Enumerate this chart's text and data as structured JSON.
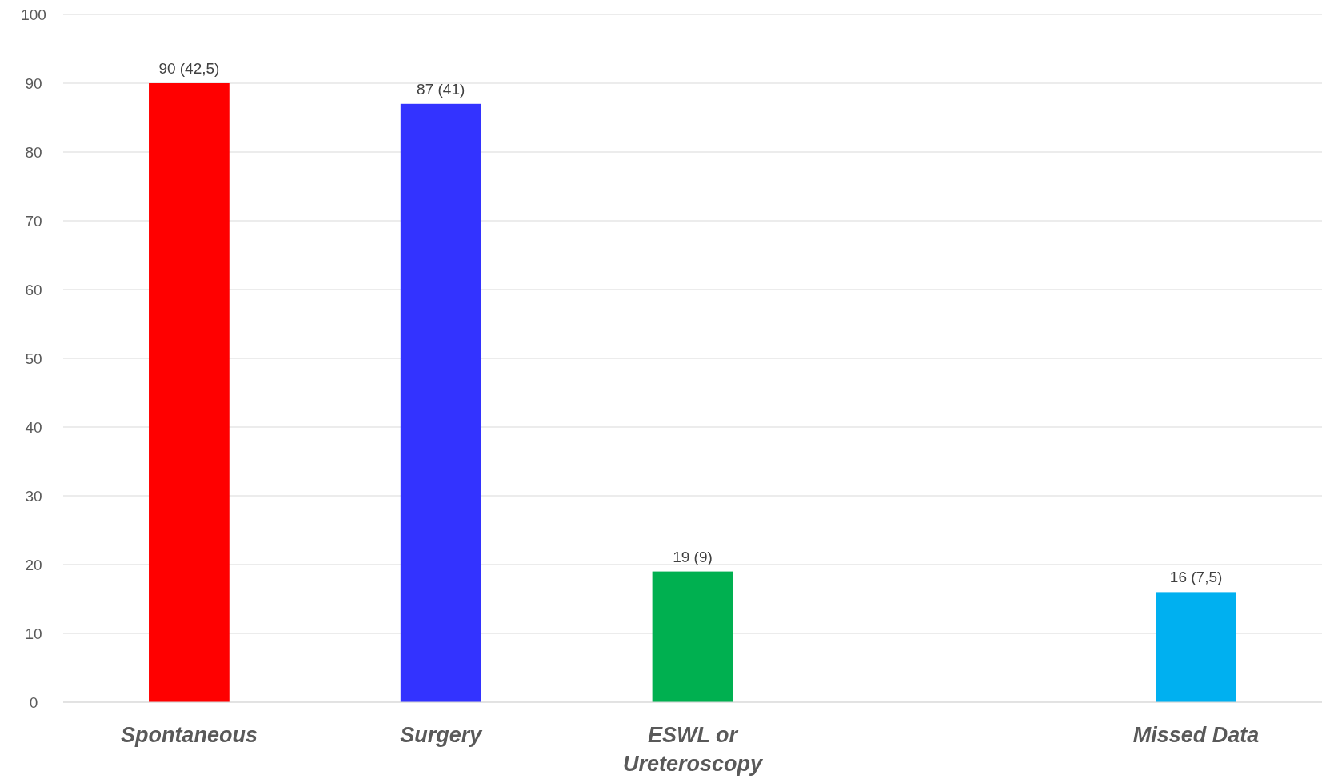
{
  "chart_data": {
    "type": "bar",
    "categories": [
      "Spontaneous",
      "Surgery",
      "ESWL or Ureteroscopy",
      null,
      "Missed Data"
    ],
    "values": [
      90,
      87,
      19,
      null,
      16
    ],
    "colors": [
      "#ff0000",
      "#3333ff",
      "#00b050",
      null,
      "#00b0f0"
    ],
    "value_labels": [
      "90 (42,5)",
      "87 (41)",
      "19 (9)",
      null,
      "16 (7,5)"
    ],
    "ylim": [
      0,
      100
    ],
    "yticks": [
      0,
      10,
      20,
      30,
      40,
      50,
      60,
      70,
      80,
      90,
      100
    ],
    "grid": "y"
  }
}
